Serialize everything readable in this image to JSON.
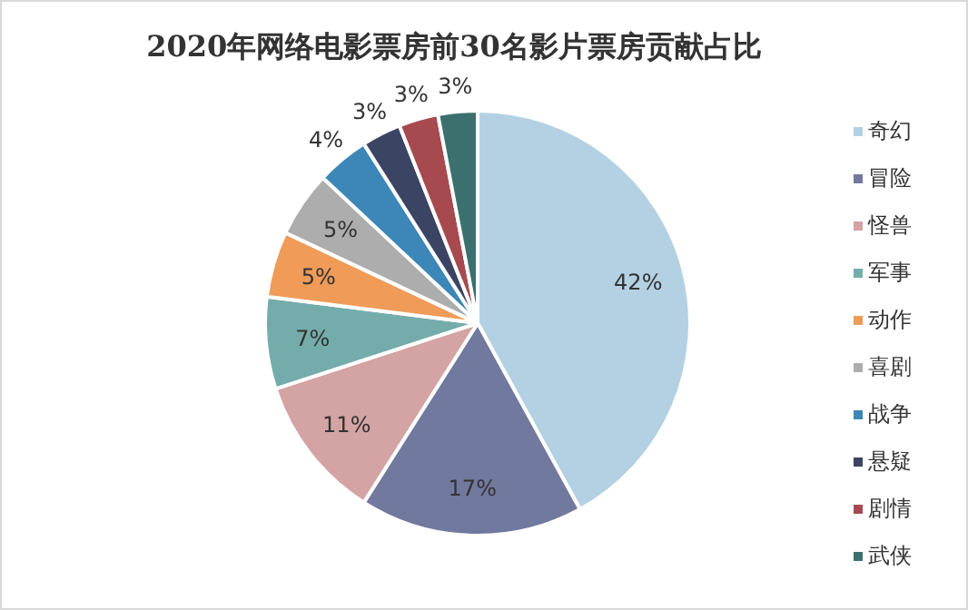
{
  "chart_data": {
    "type": "pie",
    "title": "2020年网络电影票房前30名影片票房贡献占比",
    "categories": [
      "奇幻",
      "冒险",
      "怪兽",
      "军事",
      "动作",
      "喜剧",
      "战争",
      "悬疑",
      "剧情",
      "武侠"
    ],
    "values": [
      42,
      17,
      11,
      7,
      5,
      5,
      4,
      3,
      3,
      3
    ],
    "value_labels": [
      "42%",
      "17%",
      "11%",
      "7%",
      "5%",
      "5%",
      "4%",
      "3%",
      "3%",
      "3%"
    ],
    "colors": [
      "#b4d1e3",
      "#72799e",
      "#d4a3a3",
      "#74acab",
      "#f09b58",
      "#adadad",
      "#3d87b8",
      "#3c4463",
      "#a64a50",
      "#3c706e"
    ],
    "legend": "right"
  }
}
